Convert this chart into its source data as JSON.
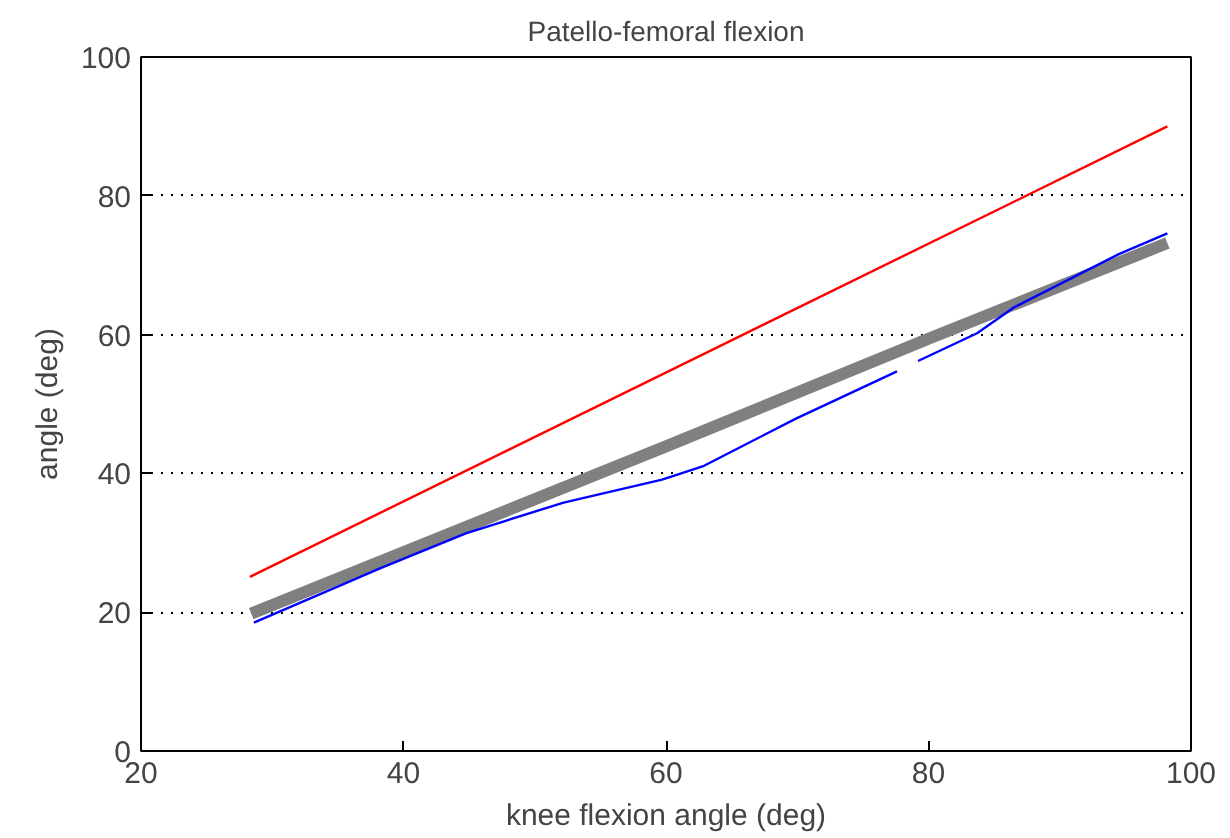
{
  "chart_data": {
    "type": "line",
    "title": "Patello-femoral flexion",
    "xlabel": "knee flexion angle (deg)",
    "ylabel": "angle (deg)",
    "xlim": [
      20,
      100
    ],
    "xticks": [
      20,
      40,
      60,
      80,
      100
    ],
    "ylim": [
      0,
      100
    ],
    "yticks": [
      0,
      20,
      40,
      60,
      80,
      100
    ],
    "grid": "y",
    "line_style": "solid",
    "series": [
      {
        "color": "#ff0000",
        "x": [
          28.3,
          98.2
        ],
        "values": [
          25.1,
          90.0
        ]
      },
      {
        "color": "#808080",
        "x": [
          28.4,
          60,
          80,
          98.2
        ],
        "values": [
          19.8,
          43.9,
          59.4,
          73.2
        ]
      },
      {
        "color": "#0000ff",
        "x": [
          28.6,
          38.3,
          44.8,
          52.2,
          59.7,
          62.9,
          69.9,
          77.6,
          78.4,
          79.2,
          83.7,
          86.5,
          94.5,
          98.2
        ],
        "values": [
          18.5,
          26.4,
          31.4,
          35.8,
          39.1,
          41.1,
          47.9,
          54.7,
          null,
          56.2,
          60.2,
          63.9,
          71.6,
          74.6
        ]
      }
    ]
  }
}
